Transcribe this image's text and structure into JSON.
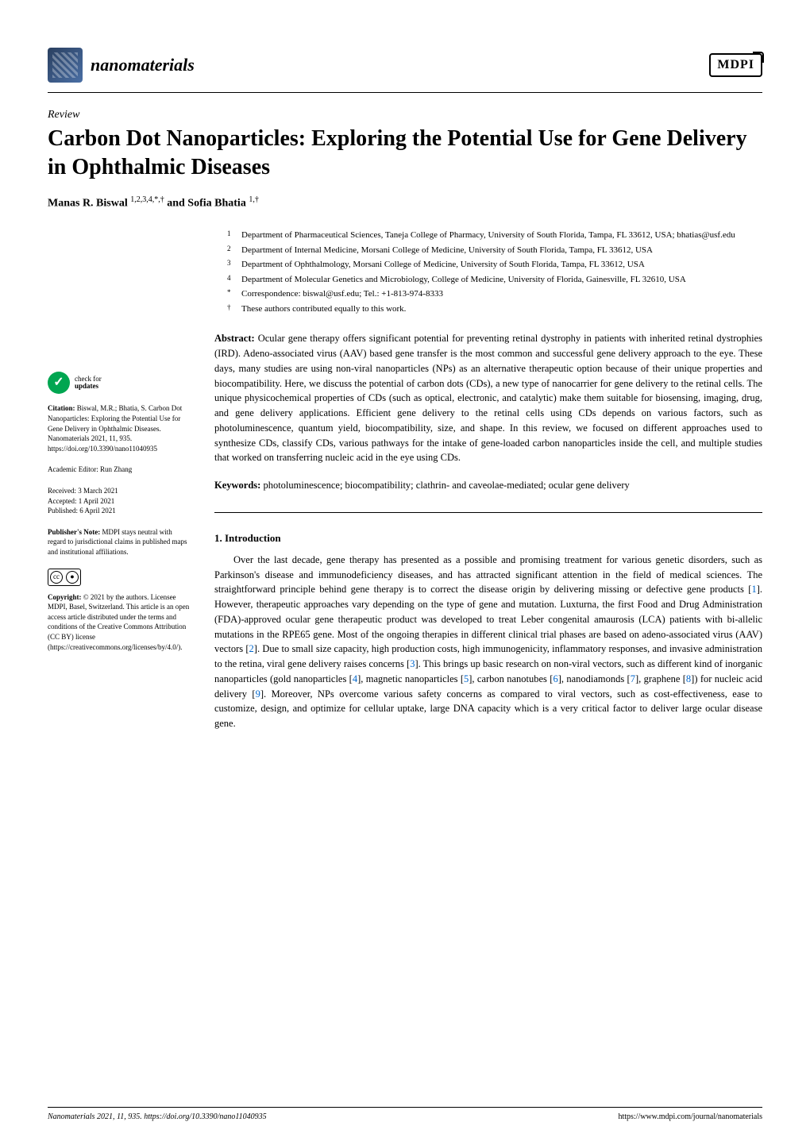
{
  "journal": {
    "name": "nanomaterials",
    "publisher": "MDPI"
  },
  "article": {
    "type": "Review",
    "title": "Carbon Dot Nanoparticles: Exploring the Potential Use for Gene Delivery in Ophthalmic Diseases",
    "authors": "Manas R. Biswal 1,2,3,4,*,† and Sofia Bhatia 1,†"
  },
  "affiliations": [
    {
      "num": "1",
      "text": "Department of Pharmaceutical Sciences, Taneja College of Pharmacy, University of South Florida, Tampa, FL 33612, USA; bhatias@usf.edu"
    },
    {
      "num": "2",
      "text": "Department of Internal Medicine, Morsani College of Medicine, University of South Florida, Tampa, FL 33612, USA"
    },
    {
      "num": "3",
      "text": "Department of Ophthalmology, Morsani College of Medicine, University of South Florida, Tampa, FL 33612, USA"
    },
    {
      "num": "4",
      "text": "Department of Molecular Genetics and Microbiology, College of Medicine, University of Florida, Gainesville, FL 32610, USA"
    },
    {
      "num": "*",
      "text": "Correspondence: biswal@usf.edu; Tel.: +1-813-974-8333"
    },
    {
      "num": "†",
      "text": "These authors contributed equally to this work."
    }
  ],
  "abstract": {
    "label": "Abstract:",
    "text": "Ocular gene therapy offers significant potential for preventing retinal dystrophy in patients with inherited retinal dystrophies (IRD). Adeno-associated virus (AAV) based gene transfer is the most common and successful gene delivery approach to the eye. These days, many studies are using non-viral nanoparticles (NPs) as an alternative therapeutic option because of their unique properties and biocompatibility. Here, we discuss the potential of carbon dots (CDs), a new type of nanocarrier for gene delivery to the retinal cells. The unique physicochemical properties of CDs (such as optical, electronic, and catalytic) make them suitable for biosensing, imaging, drug, and gene delivery applications. Efficient gene delivery to the retinal cells using CDs depends on various factors, such as photoluminescence, quantum yield, biocompatibility, size, and shape. In this review, we focused on different approaches used to synthesize CDs, classify CDs, various pathways for the intake of gene-loaded carbon nanoparticles inside the cell, and multiple studies that worked on transferring nucleic acid in the eye using CDs."
  },
  "keywords": {
    "label": "Keywords:",
    "text": "photoluminescence; biocompatibility; clathrin- and caveolae-mediated; ocular gene delivery"
  },
  "section1": {
    "heading": "1. Introduction",
    "body": "Over the last decade, gene therapy has presented as a possible and promising treatment for various genetic disorders, such as Parkinson's disease and immunodeficiency diseases, and has attracted significant attention in the field of medical sciences. The straightforward principle behind gene therapy is to correct the disease origin by delivering missing or defective gene products [1]. However, therapeutic approaches vary depending on the type of gene and mutation. Luxturna, the first Food and Drug Administration (FDA)-approved ocular gene therapeutic product was developed to treat Leber congenital amaurosis (LCA) patients with bi-allelic mutations in the RPE65 gene. Most of the ongoing therapies in different clinical trial phases are based on adeno-associated virus (AAV) vectors [2]. Due to small size capacity, high production costs, high immunogenicity, inflammatory responses, and invasive administration to the retina, viral gene delivery raises concerns [3]. This brings up basic research on non-viral vectors, such as different kind of inorganic nanoparticles (gold nanoparticles [4], magnetic nanoparticles [5], carbon nanotubes [6], nanodiamonds [7], graphene [8]) for nucleic acid delivery [9]. Moreover, NPs overcome various safety concerns as compared to viral vectors, such as cost-effectiveness, ease to customize, design, and optimize for cellular uptake, large DNA capacity which is a very critical factor to deliver large ocular disease gene."
  },
  "sidebar": {
    "check_updates": {
      "line1": "check for",
      "line2": "updates"
    },
    "citation": {
      "label": "Citation:",
      "text": "Biswal, M.R.; Bhatia, S. Carbon Dot Nanoparticles: Exploring the Potential Use for Gene Delivery in Ophthalmic Diseases. Nanomaterials 2021, 11, 935. https://doi.org/10.3390/nano11040935"
    },
    "editor": {
      "label": "Academic Editor:",
      "value": "Run Zhang"
    },
    "dates": {
      "received_label": "Received:",
      "received": "3 March 2021",
      "accepted_label": "Accepted:",
      "accepted": "1 April 2021",
      "published_label": "Published:",
      "published": "6 April 2021"
    },
    "publishers_note": {
      "label": "Publisher's Note:",
      "text": "MDPI stays neutral with regard to jurisdictional claims in published maps and institutional affiliations."
    },
    "copyright": {
      "label": "Copyright:",
      "text": "© 2021 by the authors. Licensee MDPI, Basel, Switzerland. This article is an open access article distributed under the terms and conditions of the Creative Commons Attribution (CC BY) license (https://creativecommons.org/licenses/by/4.0/)."
    }
  },
  "footer": {
    "left": "Nanomaterials 2021, 11, 935. https://doi.org/10.3390/nano11040935",
    "right": "https://www.mdpi.com/journal/nanomaterials"
  },
  "colors": {
    "link": "#0066cc",
    "check_green": "#00a651"
  }
}
